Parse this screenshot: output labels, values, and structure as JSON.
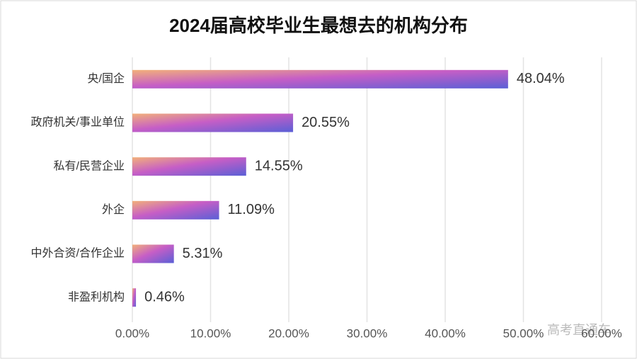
{
  "chart_data": {
    "type": "bar",
    "orientation": "horizontal",
    "title": "2024届高校毕业生最想去的机构分布",
    "categories": [
      "央/国企",
      "政府机关/事业单位",
      "私有/民营企业",
      "外企",
      "中外合资/合作企业",
      "非盈利机构"
    ],
    "values": [
      48.04,
      20.55,
      14.55,
      11.09,
      5.31,
      0.46
    ],
    "value_labels": [
      "48.04%",
      "20.55%",
      "14.55%",
      "11.09%",
      "5.31%",
      "0.46%"
    ],
    "xlim": [
      0,
      60
    ],
    "xticks": [
      {
        "value": 0,
        "label": "0.00%"
      },
      {
        "value": 10,
        "label": "10.00%"
      },
      {
        "value": 20,
        "label": "20.00%"
      },
      {
        "value": 30,
        "label": "30.00%"
      },
      {
        "value": 40,
        "label": "40.00%"
      },
      {
        "value": 50,
        "label": "50.00%"
      },
      {
        "value": 60,
        "label": "60.00%"
      }
    ],
    "grid": true,
    "annotation": "高考直通车"
  }
}
